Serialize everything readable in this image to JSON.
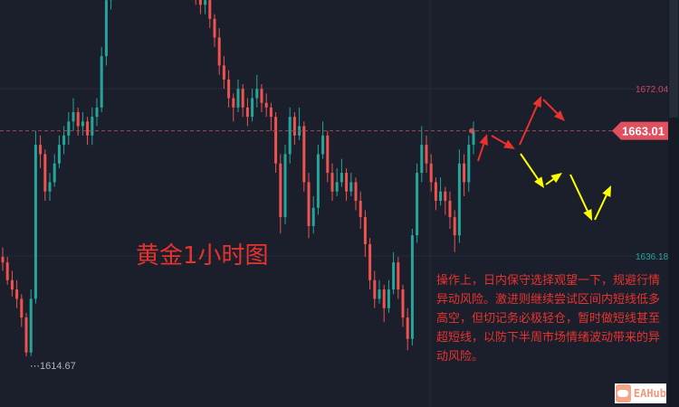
{
  "chart_data": {
    "type": "candlestick",
    "title": "黄金1小时图",
    "y_ticks": [
      {
        "value": 1672.04,
        "label": "1672.04"
      },
      {
        "value": 1636.18,
        "label": "1636.18"
      }
    ],
    "current_price": {
      "value": 1663.01,
      "label": "1663.01"
    },
    "low_marker": {
      "value": 1614.67,
      "label": "1614.67"
    },
    "ylim": [
      1605,
      1691
    ],
    "grid": true,
    "colors": {
      "up": "#26a69a",
      "down": "#ef5350",
      "background": "#1a1f2b",
      "price_label": "#e0505e",
      "annotation_red": "#e8322e",
      "annotation_yellow": "#ffff00"
    },
    "candles_ohlc": [
      [
        1636,
        1638,
        1633,
        1634.8
      ],
      [
        1634.8,
        1636,
        1630,
        1631
      ],
      [
        1631,
        1633,
        1627.5,
        1629
      ],
      [
        1629,
        1631,
        1625,
        1627
      ],
      [
        1627,
        1628,
        1621,
        1623
      ],
      [
        1623,
        1624,
        1614.7,
        1615.5
      ],
      [
        1615.5,
        1629,
        1614.7,
        1627
      ],
      [
        1627,
        1663,
        1626,
        1660
      ],
      [
        1660,
        1662,
        1655,
        1658
      ],
      [
        1658,
        1659,
        1648,
        1650
      ],
      [
        1650,
        1654,
        1648,
        1652
      ],
      [
        1652,
        1658,
        1651,
        1656
      ],
      [
        1656,
        1662,
        1655,
        1660
      ],
      [
        1660,
        1664,
        1658,
        1662
      ],
      [
        1662,
        1667,
        1660,
        1665
      ],
      [
        1665,
        1670,
        1663,
        1667
      ],
      [
        1667,
        1668,
        1662,
        1664
      ],
      [
        1664,
        1667,
        1662,
        1665
      ],
      [
        1665,
        1666,
        1660,
        1662
      ],
      [
        1662,
        1668,
        1660,
        1666
      ],
      [
        1666,
        1670,
        1664,
        1668
      ],
      [
        1668,
        1681,
        1667,
        1679
      ],
      [
        1679,
        1693,
        1677,
        1691
      ],
      [
        1691,
        1698,
        1689,
        1696
      ],
      [
        1696,
        1700,
        1693,
        1698
      ],
      [
        1698,
        1702,
        1695,
        1697
      ],
      [
        1697,
        1703,
        1695,
        1701
      ],
      [
        1701,
        1705,
        1699,
        1703
      ],
      [
        1703,
        1706,
        1699,
        1700
      ],
      [
        1700,
        1704,
        1698,
        1702
      ],
      [
        1702,
        1707,
        1700,
        1705
      ],
      [
        1705,
        1708,
        1702,
        1704
      ],
      [
        1704,
        1706,
        1700,
        1701
      ],
      [
        1701,
        1704,
        1698,
        1703
      ],
      [
        1703,
        1705,
        1699,
        1700
      ],
      [
        1700,
        1703,
        1697,
        1699
      ],
      [
        1699,
        1702,
        1696,
        1698
      ],
      [
        1698,
        1700,
        1694,
        1695
      ],
      [
        1695,
        1699,
        1693,
        1697
      ],
      [
        1697,
        1699,
        1692,
        1694
      ],
      [
        1694,
        1697,
        1691,
        1695
      ],
      [
        1695,
        1696,
        1690,
        1692
      ],
      [
        1692,
        1694,
        1688,
        1690
      ],
      [
        1690,
        1693,
        1688,
        1691
      ],
      [
        1691,
        1692,
        1685,
        1687
      ],
      [
        1687,
        1688,
        1681,
        1683
      ],
      [
        1683,
        1685,
        1675,
        1677
      ],
      [
        1677,
        1679,
        1672,
        1674
      ],
      [
        1674,
        1676,
        1668,
        1670
      ],
      [
        1670,
        1671,
        1665,
        1668
      ],
      [
        1668,
        1674,
        1667,
        1672
      ],
      [
        1672,
        1673,
        1666,
        1668
      ],
      [
        1668,
        1670,
        1664,
        1666
      ],
      [
        1666,
        1672,
        1665,
        1670
      ],
      [
        1670,
        1675,
        1668,
        1672
      ],
      [
        1672,
        1673,
        1667,
        1669
      ],
      [
        1669,
        1671,
        1666,
        1668
      ],
      [
        1668,
        1669,
        1663,
        1666
      ],
      [
        1666,
        1667,
        1654,
        1656
      ],
      [
        1656,
        1658,
        1641,
        1644.5
      ],
      [
        1644.5,
        1660,
        1643,
        1658
      ],
      [
        1658,
        1668,
        1656,
        1666
      ],
      [
        1666,
        1667,
        1660,
        1662
      ],
      [
        1662,
        1668,
        1661,
        1664
      ],
      [
        1664,
        1665,
        1650,
        1652
      ],
      [
        1652,
        1654,
        1640,
        1642.6
      ],
      [
        1642.6,
        1649,
        1641,
        1646.5
      ],
      [
        1646.5,
        1660,
        1645,
        1658
      ],
      [
        1658,
        1665,
        1657,
        1662
      ],
      [
        1662,
        1663,
        1652,
        1654
      ],
      [
        1654,
        1656,
        1648,
        1650
      ],
      [
        1650,
        1655,
        1649,
        1652
      ],
      [
        1652,
        1657,
        1651,
        1654
      ],
      [
        1654,
        1655,
        1648,
        1650
      ],
      [
        1650,
        1654,
        1649,
        1652
      ],
      [
        1652,
        1653,
        1646,
        1648
      ],
      [
        1648,
        1650,
        1642,
        1644.5
      ],
      [
        1644.5,
        1646,
        1636,
        1638.7
      ],
      [
        1638.7,
        1640,
        1629,
        1631
      ],
      [
        1631,
        1633,
        1625,
        1627
      ],
      [
        1627,
        1631,
        1626,
        1629
      ],
      [
        1629,
        1630,
        1622,
        1625
      ],
      [
        1625,
        1631,
        1624,
        1629
      ],
      [
        1629,
        1637,
        1628,
        1634.8
      ],
      [
        1634.8,
        1636,
        1627,
        1629
      ],
      [
        1629,
        1630,
        1621,
        1623
      ],
      [
        1623,
        1625,
        1616,
        1618.4
      ],
      [
        1618.4,
        1642,
        1617,
        1640.6
      ],
      [
        1640.6,
        1656,
        1639,
        1654
      ],
      [
        1654,
        1664,
        1652,
        1660
      ],
      [
        1660,
        1662,
        1654,
        1656
      ],
      [
        1656,
        1658,
        1650,
        1652
      ],
      [
        1652,
        1653,
        1646,
        1648
      ],
      [
        1648,
        1653,
        1647,
        1650
      ],
      [
        1650,
        1651,
        1645,
        1648
      ],
      [
        1648,
        1650,
        1642,
        1644.5
      ],
      [
        1644.5,
        1646,
        1637,
        1640.6
      ],
      [
        1640.6,
        1659,
        1639,
        1656
      ],
      [
        1656,
        1658,
        1649,
        1652
      ],
      [
        1652,
        1662,
        1650,
        1660
      ],
      [
        1660,
        1665,
        1658,
        1663.01
      ]
    ]
  },
  "annotation": {
    "chart_label": "黄金1小时图",
    "note": "操作上，日内保守选择观望一下，规避行情异动风险。激进则继续尝试区间内短线低多高空，但切记务必极轻仓，暂时做短线甚至超短线，以防下半周市场情绪波动带来的异动风险。"
  },
  "watermark": {
    "text": "EAHub"
  },
  "scale_arrow_icon": "chevron-right-icon"
}
